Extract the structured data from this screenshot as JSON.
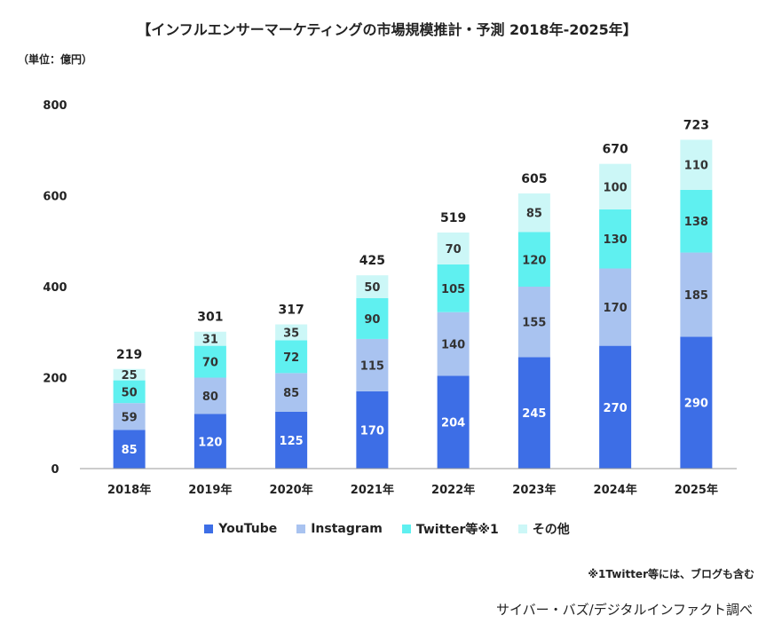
{
  "title": "【インフルエンサーマーケティングの市場規模推計・予測 2018年-2025年】",
  "unit_label": "（単位：億円）",
  "footnote": "※1Twitter等には、ブログも含む",
  "source": "サイバー・バズ/デジタルインファクト調べ",
  "colors": {
    "youtube": "#3d6ee6",
    "instagram": "#a9c3f0",
    "twitter": "#5ff0f0",
    "other": "#ccf7f7",
    "axis": "#999999"
  },
  "chart_data": {
    "type": "bar",
    "stacked": true,
    "title": "【インフルエンサーマーケティングの市場規模推計・予測 2018年-2025年】",
    "ylabel": "（単位：億円）",
    "ylim": [
      0,
      800
    ],
    "yticks": [
      0,
      200,
      400,
      600,
      800
    ],
    "categories": [
      "2018年",
      "2019年",
      "2020年",
      "2021年",
      "2022年",
      "2023年",
      "2024年",
      "2025年"
    ],
    "series": [
      {
        "name": "YouTube",
        "color_key": "youtube",
        "values": [
          85,
          120,
          125,
          170,
          204,
          245,
          270,
          290
        ]
      },
      {
        "name": "Instagram",
        "color_key": "instagram",
        "values": [
          59,
          80,
          85,
          115,
          140,
          155,
          170,
          185
        ]
      },
      {
        "name": "Twitter等※1",
        "color_key": "twitter",
        "values": [
          50,
          70,
          72,
          90,
          105,
          120,
          130,
          138
        ]
      },
      {
        "name": "その他",
        "color_key": "other",
        "values": [
          25,
          31,
          35,
          50,
          70,
          85,
          100,
          110
        ]
      }
    ],
    "totals": [
      219,
      301,
      317,
      425,
      519,
      605,
      670,
      723
    ],
    "legend_position": "bottom",
    "grid": false
  }
}
